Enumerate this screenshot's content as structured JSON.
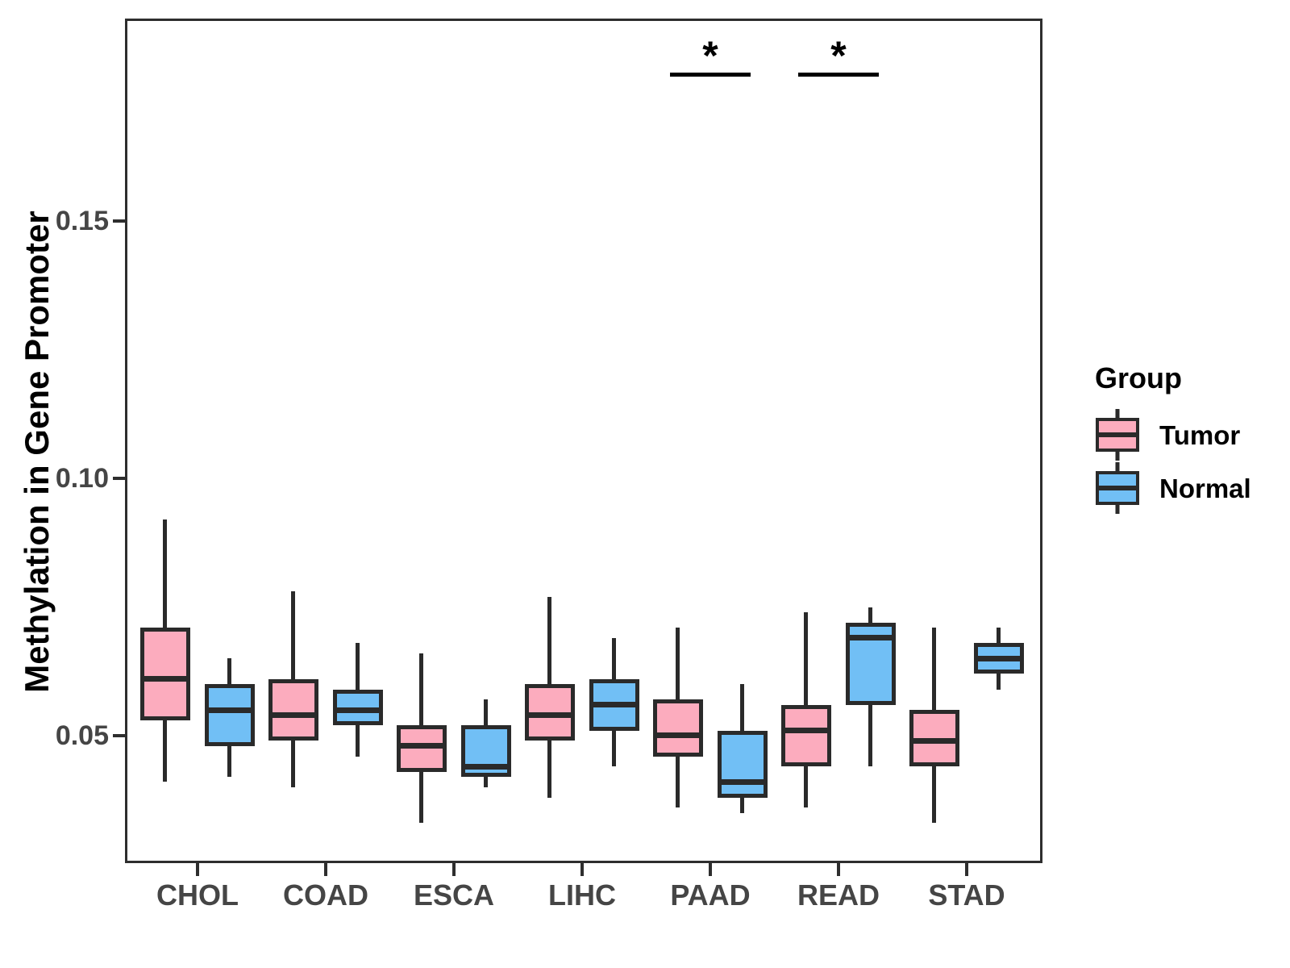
{
  "chart_data": {
    "type": "boxplot",
    "title": "",
    "ylabel": "Methylation in Gene Promoter",
    "xlabel": "",
    "ylim": [
      0.025,
      0.192
    ],
    "grid": false,
    "legend_position": "right",
    "box_stroke": "#2A2A2A",
    "yticks": {
      "values": [
        0.05,
        0.1,
        0.15
      ],
      "labels": [
        "0.05",
        "0.10",
        "0.15"
      ]
    },
    "categories": [
      "CHOL",
      "COAD",
      "ESCA",
      "LIHC",
      "PAAD",
      "READ",
      "STAD"
    ],
    "series": [
      {
        "name": "Tumor",
        "fill": "#FCACBE",
        "boxes": [
          {
            "min": 0.041,
            "q1": 0.053,
            "median": 0.061,
            "q3": 0.071,
            "max": 0.092
          },
          {
            "min": 0.04,
            "q1": 0.049,
            "median": 0.054,
            "q3": 0.061,
            "max": 0.078
          },
          {
            "min": 0.033,
            "q1": 0.043,
            "median": 0.048,
            "q3": 0.052,
            "max": 0.066
          },
          {
            "min": 0.038,
            "q1": 0.049,
            "median": 0.054,
            "q3": 0.06,
            "max": 0.077
          },
          {
            "min": 0.036,
            "q1": 0.046,
            "median": 0.05,
            "q3": 0.057,
            "max": 0.071
          },
          {
            "min": 0.036,
            "q1": 0.044,
            "median": 0.051,
            "q3": 0.056,
            "max": 0.074
          },
          {
            "min": 0.033,
            "q1": 0.044,
            "median": 0.049,
            "q3": 0.055,
            "max": 0.071
          }
        ]
      },
      {
        "name": "Normal",
        "fill": "#71BFF5",
        "boxes": [
          {
            "min": 0.042,
            "q1": 0.048,
            "median": 0.055,
            "q3": 0.06,
            "max": 0.065
          },
          {
            "min": 0.046,
            "q1": 0.052,
            "median": 0.055,
            "q3": 0.059,
            "max": 0.068
          },
          {
            "min": 0.04,
            "q1": 0.042,
            "median": 0.044,
            "q3": 0.052,
            "max": 0.057
          },
          {
            "min": 0.044,
            "q1": 0.051,
            "median": 0.056,
            "q3": 0.061,
            "max": 0.069
          },
          {
            "min": 0.035,
            "q1": 0.038,
            "median": 0.041,
            "q3": 0.051,
            "max": 0.06
          },
          {
            "min": 0.044,
            "q1": 0.056,
            "median": 0.069,
            "q3": 0.072,
            "max": 0.075
          },
          {
            "min": 0.059,
            "q1": 0.062,
            "median": 0.065,
            "q3": 0.068,
            "max": 0.071
          }
        ]
      }
    ],
    "annotations": [
      {
        "category": "PAAD",
        "text": "*"
      },
      {
        "category": "READ",
        "text": "*"
      }
    ]
  },
  "legend": {
    "title": "Group",
    "items": [
      {
        "label": "Tumor",
        "color": "#FCACBE"
      },
      {
        "label": "Normal",
        "color": "#71BFF5"
      }
    ]
  }
}
